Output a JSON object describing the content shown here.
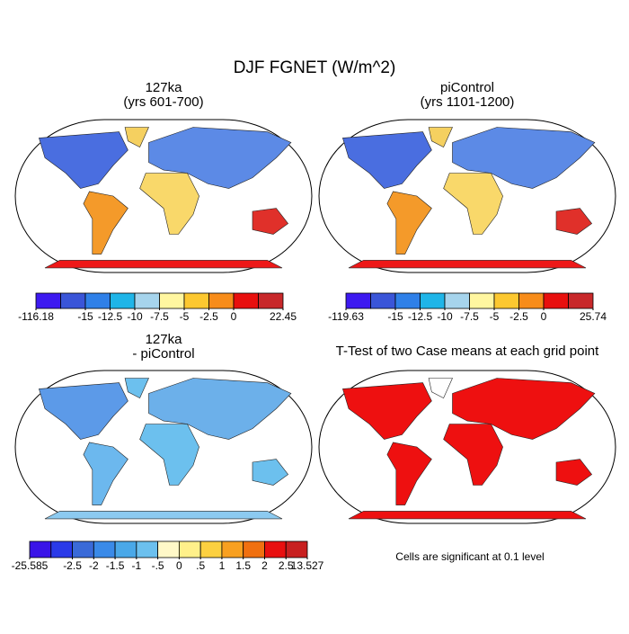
{
  "title": "DJF FGNET (W/m^2)",
  "panels": [
    {
      "title": [
        "127ka",
        "(yrs 601-700)"
      ],
      "colorbar": {
        "colors": [
          "#3d1af0",
          "#3a55d8",
          "#2f80e8",
          "#1fb5e8",
          "#a6d4ec",
          "#fff6a0",
          "#fcc830",
          "#f78c1a",
          "#e8100e",
          "#c8282a"
        ],
        "boundaries": [
          -116.18,
          null,
          -15,
          -12.5,
          -10,
          -7.5,
          -5,
          -2.5,
          0,
          null,
          22.45
        ]
      }
    },
    {
      "title": [
        "piControl",
        "(yrs 1101-1200)"
      ],
      "colorbar": {
        "colors": [
          "#3d1af0",
          "#3a55d8",
          "#2f80e8",
          "#1fb5e8",
          "#a6d4ec",
          "#fff6a0",
          "#fcc830",
          "#f78c1a",
          "#e8100e",
          "#c8282a"
        ],
        "boundaries": [
          -119.63,
          null,
          -15,
          -12.5,
          -10,
          -7.5,
          -5,
          -2.5,
          0,
          null,
          25.74
        ]
      }
    },
    {
      "title": [
        "127ka",
        "- piControl"
      ],
      "colorbar": {
        "colors": [
          "#3a14e8",
          "#2a3ae8",
          "#3a6ad8",
          "#3a8ae8",
          "#4aa8e8",
          "#6cc0ee",
          "#fff8c8",
          "#fff08a",
          "#fcd040",
          "#f8a020",
          "#f07010",
          "#e81010",
          "#c82020"
        ],
        "boundaries": [
          -25.585,
          null,
          -2.5,
          -2,
          -1.5,
          -1,
          {
            "value": -0.5,
            "label": "-.5"
          },
          0,
          {
            "value": 0.5,
            "label": ".5"
          },
          1,
          1.5,
          2,
          2.5,
          13.527
        ]
      }
    },
    {
      "title": [
        "T-Test of two Case means at each grid point"
      ],
      "note": "Cells are significant at 0.1 level"
    }
  ]
}
